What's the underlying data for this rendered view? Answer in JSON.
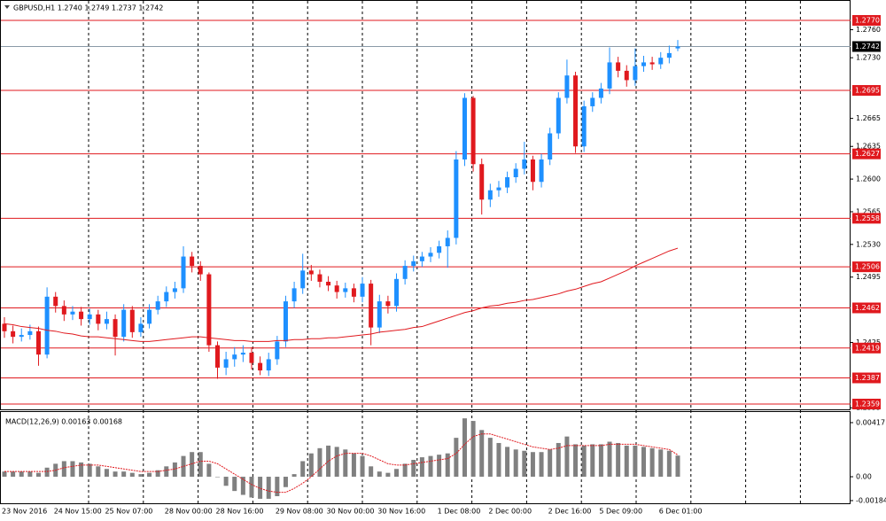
{
  "chart_data": {
    "type": "candlestick",
    "title": "GBPUSD,H1  1.2740 1.2749 1.2737 1.2742",
    "categories": [
      "23 Nov 2016",
      null,
      null,
      null,
      null,
      null,
      "24 Nov 15:00",
      null,
      null,
      null,
      null,
      null,
      "25 Nov 07:00",
      null,
      null,
      null,
      null,
      null,
      null,
      "28 Nov 00:00",
      null,
      null,
      null,
      null,
      null,
      "28 Nov 16:00",
      null,
      null,
      null,
      null,
      null,
      null,
      "29 Nov 08:00",
      null,
      null,
      null,
      null,
      null,
      "30 Nov 00:00",
      null,
      null,
      null,
      null,
      null,
      "30 Nov 16:00",
      null,
      null,
      null,
      null,
      null,
      null,
      "1 Dec 08:00",
      null,
      null,
      null,
      null,
      null,
      "2 Dec 00:00",
      null,
      null,
      null,
      null,
      null,
      null,
      "2 Dec 16:00",
      null,
      null,
      null,
      null,
      null,
      "5 Dec 09:00",
      null,
      null,
      null,
      null,
      null,
      null,
      "6 Dec 01:00",
      null,
      null
    ],
    "candles": {
      "open": [
        1.2445,
        1.2437,
        1.2431,
        1.2433,
        1.2437,
        1.2412,
        1.2474,
        1.2464,
        1.2455,
        1.2458,
        1.245,
        1.2455,
        1.2445,
        1.245,
        1.2431,
        1.246,
        1.2436,
        1.2445,
        1.246,
        1.2469,
        1.2479,
        1.2483,
        1.2517,
        1.2507,
        1.2498,
        1.2422,
        1.2398,
        1.2407,
        1.2412,
        1.2414,
        1.2403,
        1.2395,
        1.2407,
        1.2426,
        1.2469,
        1.2483,
        1.2502,
        1.2498,
        1.249,
        1.2486,
        1.2479,
        1.2483,
        1.2474,
        1.2488,
        1.2441,
        1.2469,
        1.2464,
        1.2493,
        1.2507,
        1.2512,
        1.2517,
        1.2521,
        1.2528,
        1.2537,
        1.2621,
        1.2687,
        1.2616,
        1.2578,
        1.2588,
        1.2591,
        1.2602,
        1.2611,
        1.2621,
        1.2597,
        1.2621,
        1.2649,
        1.2687,
        1.2711,
        1.2635,
        1.2678,
        1.2687,
        1.2697,
        1.2725,
        1.2716,
        1.2706,
        1.2721,
        1.2725,
        1.2723,
        1.273,
        1.274
      ],
      "high": [
        1.2452,
        1.2443,
        1.244,
        1.2444,
        1.2442,
        1.2484,
        1.2479,
        1.247,
        1.2464,
        1.2463,
        1.2461,
        1.246,
        1.2458,
        1.2455,
        1.2466,
        1.2464,
        1.2452,
        1.2466,
        1.2475,
        1.2485,
        1.249,
        1.2528,
        1.2522,
        1.2512,
        1.25,
        1.2426,
        1.2415,
        1.242,
        1.2422,
        1.242,
        1.241,
        1.2414,
        1.2432,
        1.2475,
        1.249,
        1.252,
        1.2508,
        1.2503,
        1.2496,
        1.2491,
        1.2489,
        1.2488,
        1.2495,
        1.2492,
        1.2476,
        1.2475,
        1.2499,
        1.2513,
        1.2518,
        1.2522,
        1.2527,
        1.2534,
        1.2545,
        1.263,
        1.2692,
        1.2689,
        1.2622,
        1.2595,
        1.2598,
        1.2608,
        1.2617,
        1.264,
        1.2625,
        1.2627,
        1.2655,
        1.2693,
        1.2728,
        1.2715,
        1.2684,
        1.2693,
        1.2703,
        1.2741,
        1.2731,
        1.2722,
        1.274,
        1.2732,
        1.2731,
        1.2736,
        1.2743,
        1.2749
      ],
      "low": [
        1.243,
        1.2424,
        1.2426,
        1.2428,
        1.24,
        1.2408,
        1.2457,
        1.2448,
        1.2449,
        1.2443,
        1.2444,
        1.2438,
        1.2439,
        1.2411,
        1.2426,
        1.243,
        1.2431,
        1.244,
        1.2455,
        1.2463,
        1.2472,
        1.2478,
        1.25,
        1.2491,
        1.2415,
        1.2386,
        1.239,
        1.2399,
        1.2404,
        1.2396,
        1.239,
        1.2389,
        1.2401,
        1.242,
        1.2462,
        1.2477,
        1.2491,
        1.2484,
        1.248,
        1.2472,
        1.2473,
        1.2468,
        1.2468,
        1.2422,
        1.2435,
        1.2456,
        1.2458,
        1.2487,
        1.2501,
        1.2506,
        1.2511,
        1.2515,
        1.2505,
        1.253,
        1.2614,
        1.2608,
        1.2562,
        1.257,
        1.2581,
        1.2585,
        1.2596,
        1.2605,
        1.2588,
        1.2591,
        1.2615,
        1.2643,
        1.2681,
        1.2628,
        1.2629,
        1.2672,
        1.2681,
        1.2691,
        1.2709,
        1.2699,
        1.27,
        1.2715,
        1.2717,
        1.2718,
        1.2724,
        1.2737
      ],
      "close": [
        1.2437,
        1.2431,
        1.2433,
        1.2437,
        1.2412,
        1.2474,
        1.2464,
        1.2455,
        1.2458,
        1.245,
        1.2455,
        1.2445,
        1.245,
        1.2431,
        1.246,
        1.2436,
        1.2445,
        1.246,
        1.2469,
        1.2479,
        1.2483,
        1.2517,
        1.2507,
        1.2498,
        1.2422,
        1.2398,
        1.2407,
        1.2412,
        1.2414,
        1.2403,
        1.2395,
        1.2407,
        1.2426,
        1.2469,
        1.2483,
        1.2502,
        1.2498,
        1.249,
        1.2486,
        1.2479,
        1.2483,
        1.2474,
        1.2488,
        1.2441,
        1.2469,
        1.2464,
        1.2493,
        1.2507,
        1.2512,
        1.2517,
        1.2521,
        1.2528,
        1.2537,
        1.2621,
        1.2687,
        1.2616,
        1.2578,
        1.2588,
        1.2591,
        1.2602,
        1.2611,
        1.2621,
        1.2597,
        1.2621,
        1.2649,
        1.2687,
        1.2711,
        1.2635,
        1.2678,
        1.2687,
        1.2697,
        1.2725,
        1.2716,
        1.2706,
        1.2721,
        1.2725,
        1.2723,
        1.273,
        1.2735,
        1.2742
      ]
    },
    "up_color": "#1e90ff",
    "down_color": "#e0191e",
    "ma": {
      "color": "#e0191e",
      "values": [
        1.2445,
        1.2444,
        1.2442,
        1.2441,
        1.244,
        1.2438,
        1.2437,
        1.2435,
        1.2434,
        1.2432,
        1.2431,
        1.2431,
        1.243,
        1.2429,
        1.2428,
        1.2427,
        1.2426,
        1.2426,
        1.2427,
        1.2428,
        1.2429,
        1.243,
        1.2431,
        1.2431,
        1.243,
        1.2429,
        1.2428,
        1.2427,
        1.2427,
        1.2426,
        1.2426,
        1.2426,
        1.2427,
        1.2427,
        1.2428,
        1.2428,
        1.2429,
        1.2429,
        1.243,
        1.243,
        1.2431,
        1.2432,
        1.2433,
        1.2434,
        1.2436,
        1.2437,
        1.2438,
        1.2439,
        1.2441,
        1.2442,
        1.2445,
        1.2448,
        1.2451,
        1.2454,
        1.2457,
        1.2459,
        1.2462,
        1.2464,
        1.2465,
        1.2467,
        1.2468,
        1.247,
        1.2471,
        1.2473,
        1.2475,
        1.2477,
        1.248,
        1.2482,
        1.2485,
        1.2488,
        1.249,
        1.2494,
        1.2498,
        1.2502,
        1.2507,
        1.2511,
        1.2515,
        1.2519,
        1.2523,
        1.2526
      ]
    },
    "ylim": [
      1.23533,
      1.2789
    ],
    "yticks": [
      {
        "value": 1.276,
        "label": "1.2760"
      },
      {
        "value": 1.273,
        "label": "1.2730"
      },
      1.2665,
      1.2635,
      {
        "value": 1.26,
        "label": "1.2600"
      },
      1.2565,
      {
        "value": 1.253,
        "label": "1.2530"
      },
      1.2495,
      1.2425,
      1.2355
    ],
    "levels": {
      "color": "#e0191e",
      "values": [
        {
          "value": 1.277,
          "label": "1.2770"
        },
        1.2695,
        1.2627,
        1.2558,
        1.2506,
        1.2462,
        1.2419,
        1.2387,
        1.2359
      ]
    },
    "last_price": 1.2742,
    "macd": {
      "title": "MACD(12,26,9) 0.00163 0.00168",
      "ylim": [
        -0.00191,
        0.00492
      ],
      "yticks": [
        0.00417,
        {
          "value": 0,
          "label": "0.00"
        },
        -0.00184
      ],
      "histogram": {
        "color": "#808080",
        "values": [
          0.0004,
          0.0004,
          0.0004,
          0.0004,
          0.0003,
          0.0007,
          0.001,
          0.0012,
          0.0012,
          0.0011,
          0.001,
          0.0008,
          0.0006,
          0.0004,
          0.0004,
          0.0003,
          0.0002,
          0.0003,
          0.0005,
          0.0008,
          0.0011,
          0.0016,
          0.0019,
          0.0019,
          0.001,
          0.0,
          -0.0007,
          -0.0011,
          -0.0014,
          -0.0016,
          -0.0017,
          -0.0017,
          -0.0015,
          -0.0008,
          0.0002,
          0.0012,
          0.0018,
          0.0022,
          0.0024,
          0.0023,
          0.0021,
          0.0018,
          0.0016,
          0.0008,
          0.0004,
          0.0003,
          0.0006,
          0.001,
          0.0013,
          0.0015,
          0.0016,
          0.0017,
          0.0018,
          0.003,
          0.0045,
          0.0043,
          0.0036,
          0.003,
          0.0026,
          0.0023,
          0.0021,
          0.002,
          0.0019,
          0.0019,
          0.0021,
          0.0026,
          0.0031,
          0.0025,
          0.0024,
          0.0025,
          0.0025,
          0.0027,
          0.0026,
          0.0024,
          0.0024,
          0.0023,
          0.0022,
          0.0021,
          0.002,
          0.00163
        ]
      },
      "signal": {
        "color": "#e0191e",
        "values": [
          0.0004,
          0.0004,
          0.0004,
          0.0004,
          0.0004,
          0.0004,
          0.0005,
          0.0007,
          0.0008,
          0.0009,
          0.0009,
          0.0009,
          0.0008,
          0.0007,
          0.0006,
          0.0005,
          0.0004,
          0.0004,
          0.0004,
          0.0005,
          0.0006,
          0.0008,
          0.001,
          0.0012,
          0.0012,
          0.001,
          0.0006,
          0.0002,
          -0.0002,
          -0.0006,
          -0.0009,
          -0.0011,
          -0.0012,
          -0.0012,
          -0.0009,
          -0.0005,
          0.0,
          0.0006,
          0.0012,
          0.0016,
          0.0018,
          0.0018,
          0.0018,
          0.0016,
          0.0013,
          0.001,
          0.0009,
          0.0009,
          0.001,
          0.0011,
          0.0012,
          0.0013,
          0.0014,
          0.0018,
          0.0025,
          0.0031,
          0.0033,
          0.0033,
          0.0031,
          0.0029,
          0.0027,
          0.0025,
          0.0023,
          0.0022,
          0.0021,
          0.0022,
          0.0024,
          0.0024,
          0.0024,
          0.0024,
          0.0024,
          0.0025,
          0.0025,
          0.0025,
          0.0025,
          0.0024,
          0.0023,
          0.0022,
          0.0021,
          0.00168
        ]
      }
    }
  }
}
